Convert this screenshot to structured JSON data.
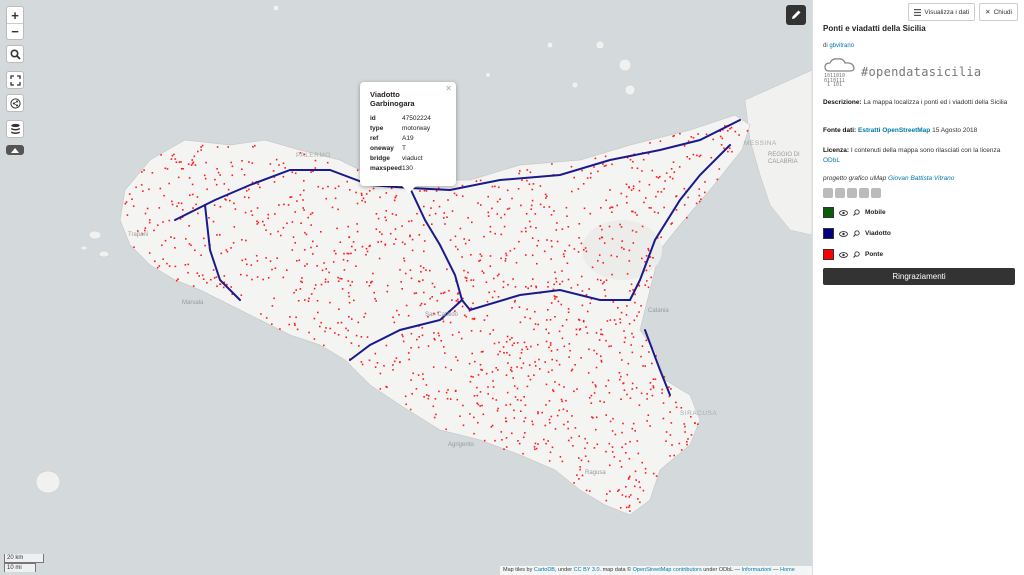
{
  "map": {
    "zoom_in": "+",
    "zoom_out": "−",
    "scale_km": "20 km",
    "scale_mi": "10 mi",
    "labels": {
      "palermo": "PALERMO",
      "messina": "MESSINA",
      "reggio": "REGGIO DI CALABRIA",
      "catania": "Catania",
      "siracusa": "SIRACUSA",
      "agrigento": "Agrigento",
      "trapani": "Trapani",
      "marsala": "Marsala",
      "caltanissetta": "San Cataldo",
      "ragusa": "Ragusa"
    },
    "attribution": {
      "prefix": "Map tiles by ",
      "cartodb": "CartoDB",
      "under": ", under ",
      "ccby": "CC BY 3.0",
      "data": ". map data © ",
      "osm": "OpenStreetMap contributors",
      "odbl": " under ODbL — ",
      "info": "Informazioni",
      "sep": " — ",
      "home": "Home"
    }
  },
  "popup": {
    "title": "Viadotto Garbinogara",
    "rows": [
      {
        "k": "id",
        "v": "47502224"
      },
      {
        "k": "type",
        "v": "motorway"
      },
      {
        "k": "ref",
        "v": "A19"
      },
      {
        "k": "oneway",
        "v": "T"
      },
      {
        "k": "bridge",
        "v": "viaduct"
      },
      {
        "k": "maxspeed",
        "v": "130"
      }
    ]
  },
  "panel": {
    "view_data": "Visualizza i dati",
    "close": "Chiudi",
    "title": "Ponti e viadatti della Sicilia",
    "author_prefix": "di ",
    "author": "gbvitrano",
    "logo_text": "#opendatasicilia",
    "desc_label": "Descrizione:",
    "desc": " La mappa localizza i ponti ed i viadotti della Sicilia",
    "source_label": "Fonte dati:",
    "source_link": "Estratti OpenStreetMap",
    "source_date": " 15 Agosto 2018",
    "license_label": "Licenza:",
    "license_text": " I contenuti della mappa sono rilasciati con la licenza ",
    "license_link": "ODbL",
    "credit_prefix": "progetto grafico uMap ",
    "credit_link": "Giovan Battista Vitrano",
    "layers": [
      {
        "name": "Mobile",
        "color": "#0a5c0a"
      },
      {
        "name": "Viadotto",
        "color": "#000080"
      },
      {
        "name": "Ponte",
        "color": "#ff0000"
      }
    ],
    "thanks": "Ringraziamenti"
  }
}
